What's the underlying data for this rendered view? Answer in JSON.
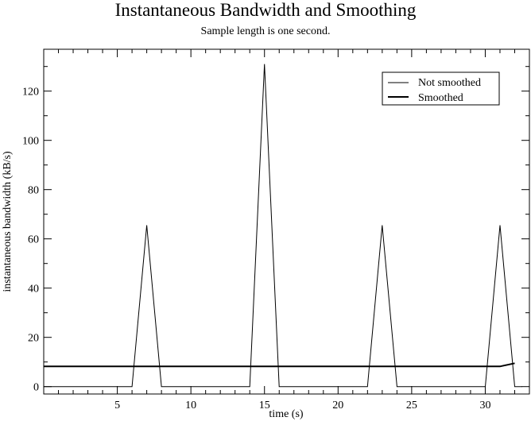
{
  "chart_data": {
    "type": "line",
    "title": "Instantaneous Bandwidth and Smoothing",
    "subtitle": "Sample length is one second.",
    "xlabel": "time (s)",
    "ylabel": "instantaneous bandwidth (kB/s)",
    "xlim": [
      0,
      33
    ],
    "ylim": [
      -3,
      137
    ],
    "x_ticks": [
      5,
      10,
      15,
      20,
      25,
      30
    ],
    "x_tick_labels": [
      "5",
      "10",
      "15",
      "20",
      "25",
      "30"
    ],
    "y_ticks": [
      0,
      20,
      40,
      60,
      80,
      100,
      120
    ],
    "y_tick_labels": [
      "0",
      "20",
      "40",
      "60",
      "80",
      "100",
      "120"
    ],
    "grid": false,
    "legend_position": "top-right",
    "series": [
      {
        "name": "Not smoothed",
        "style": "thin",
        "color": "#000000",
        "x": [
          0,
          6,
          7,
          8,
          14,
          15,
          16,
          22,
          23,
          24,
          30,
          31,
          32,
          32.5
        ],
        "y": [
          0,
          0,
          65.5,
          0,
          0,
          131,
          0,
          0,
          65.5,
          0,
          0,
          65.5,
          0,
          0
        ]
      },
      {
        "name": "Smoothed",
        "style": "thick",
        "color": "#000000",
        "x": [
          0,
          31,
          32
        ],
        "y": [
          8.2,
          8.2,
          9.5
        ]
      }
    ]
  }
}
